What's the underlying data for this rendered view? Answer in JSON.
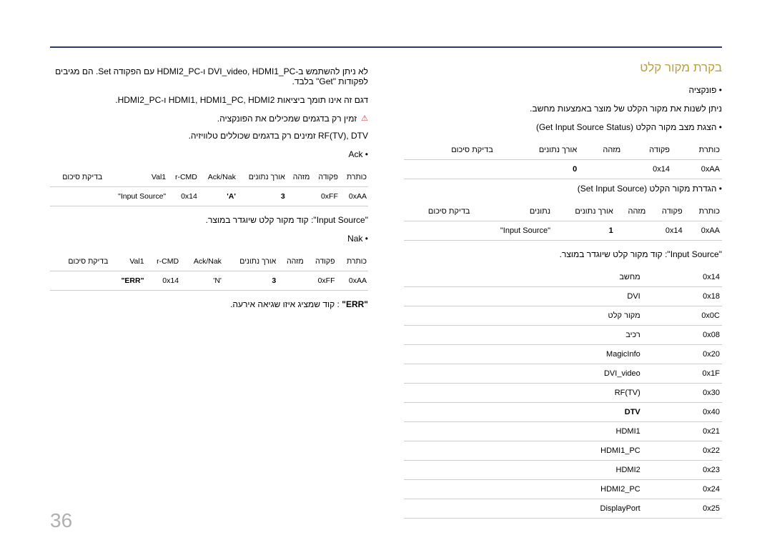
{
  "heading": "בקרת מקור קלט",
  "right": {
    "func_bullet": "• פונקציה",
    "func_desc": "ניתן לשנות את מקור הקלט של מוצר באמצעות מחשב.",
    "status_bullet": "• הצגת מצב מקור הקלט (Get Input Source Status)",
    "set_bullet": "• הגדרת מקור הקלט (Set Input Source)",
    "table1": {
      "headers": [
        "כותרת",
        "פקודה",
        "מזהה",
        "אורך נתונים",
        "בדיקת סיכום"
      ],
      "row": [
        "0xAA",
        "0x14",
        "",
        "0",
        ""
      ]
    },
    "table2": {
      "headers": [
        "כותרת",
        "פקודה",
        "מזהה",
        "אורך נתונים",
        "נתונים",
        "בדיקת סיכום"
      ],
      "row": [
        "0xAA",
        "0x14",
        "",
        "1",
        "\"Input Source\"",
        ""
      ]
    },
    "note": "\"Input Source\": קוד מקור קלט שיוגדר במוצר.",
    "src_table": [
      [
        "0x14",
        "מחשב"
      ],
      [
        "0x18",
        "DVI"
      ],
      [
        "0x0C",
        "מקור קלט"
      ],
      [
        "0x08",
        "רכיב"
      ],
      [
        "0x20",
        "MagicInfo"
      ],
      [
        "0x1F",
        "DVI_video"
      ],
      [
        "0x30",
        "RF(TV)"
      ],
      [
        "0x40",
        "DTV"
      ],
      [
        "0x21",
        "HDMI1"
      ],
      [
        "0x22",
        "HDMI1_PC"
      ],
      [
        "0x23",
        "HDMI2"
      ],
      [
        "0x24",
        "HDMI2_PC"
      ],
      [
        "0x25",
        "DisplayPort"
      ]
    ]
  },
  "left": {
    "line1": "לא ניתן להשתמש ב-DVI_video, HDMI1_PC ו-HDMI2_PC עם הפקודה Set. הם מגיבים לפקודות \"Get\" בלבד.",
    "line2": "דגם זה אינו תומך ביציאות HDMI1, HDMI1_PC, HDMI2 ו-HDMI2_PC.",
    "warn1": "זמין רק בדגמים שמכילים את הפונקציה.",
    "line3": "RF(TV), DTV זמינים רק בדגמים שכוללים טלוויזיה.",
    "ack_bullet": "• Ack",
    "nak_bullet": "• Nak",
    "ack_table": {
      "headers": [
        "כותרת",
        "פקודה",
        "מזהה",
        "אורך נתונים",
        "Ack/Nak",
        "r-CMD",
        "Val1",
        "בדיקת סיכום"
      ],
      "row": [
        "0xAA",
        "0xFF",
        "",
        "3",
        "'A'",
        "0x14",
        "\"Input Source\"",
        ""
      ]
    },
    "nak_table": {
      "headers": [
        "כותרת",
        "פקודה",
        "מזהה",
        "אורך נתונים",
        "Ack/Nak",
        "r-CMD",
        "Val1",
        "בדיקת סיכום"
      ],
      "row": [
        "0xAA",
        "0xFF",
        "",
        "3",
        "'N'",
        "0x14",
        "\"ERR\"",
        ""
      ]
    },
    "note2": "\"Input Source\": קוד מקור קלט שיוגדר במוצר.",
    "note3": "\"ERR\" : קוד שמציג איזו שגיאה אירעה."
  },
  "page_number": "36",
  "warn_glyph": "⚠",
  "dtv_bold": "DTV",
  "err_bold": "\"ERR\""
}
